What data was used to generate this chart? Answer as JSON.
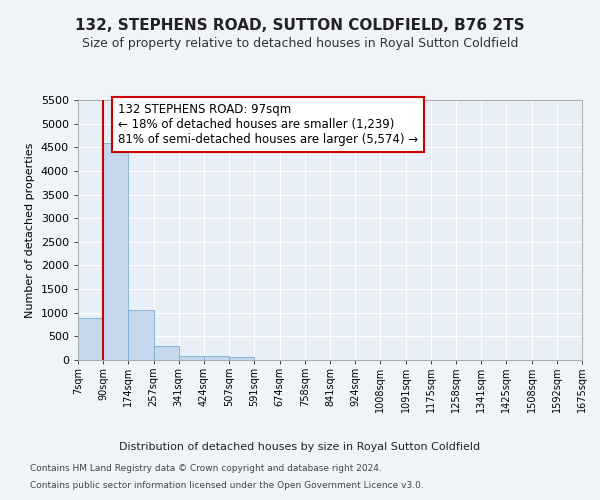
{
  "title": "132, STEPHENS ROAD, SUTTON COLDFIELD, B76 2TS",
  "subtitle": "Size of property relative to detached houses in Royal Sutton Coldfield",
  "xlabel": "Distribution of detached houses by size in Royal Sutton Coldfield",
  "ylabel": "Number of detached properties",
  "footer1": "Contains HM Land Registry data © Crown copyright and database right 2024.",
  "footer2": "Contains public sector information licensed under the Open Government Licence v3.0.",
  "bins": [
    "7sqm",
    "90sqm",
    "174sqm",
    "257sqm",
    "341sqm",
    "424sqm",
    "507sqm",
    "591sqm",
    "674sqm",
    "758sqm",
    "841sqm",
    "924sqm",
    "1008sqm",
    "1091sqm",
    "1175sqm",
    "1258sqm",
    "1341sqm",
    "1425sqm",
    "1508sqm",
    "1592sqm",
    "1675sqm"
  ],
  "values": [
    880,
    4580,
    1060,
    295,
    85,
    85,
    60,
    0,
    0,
    0,
    0,
    0,
    0,
    0,
    0,
    0,
    0,
    0,
    0,
    0
  ],
  "bar_color": "#c5d8ee",
  "bar_edge_color": "#7aafd4",
  "vline_color": "#cc0000",
  "annotation_text": "132 STEPHENS ROAD: 97sqm\n← 18% of detached houses are smaller (1,239)\n81% of semi-detached houses are larger (5,574) →",
  "annotation_box_color": "#cc0000",
  "ylim": [
    0,
    5500
  ],
  "yticks": [
    0,
    500,
    1000,
    1500,
    2000,
    2500,
    3000,
    3500,
    4000,
    4500,
    5000,
    5500
  ],
  "bg_color": "#f0f4f8",
  "plot_bg_color": "#e8eff7",
  "grid_color": "#ffffff",
  "title_fontsize": 11,
  "subtitle_fontsize": 9
}
